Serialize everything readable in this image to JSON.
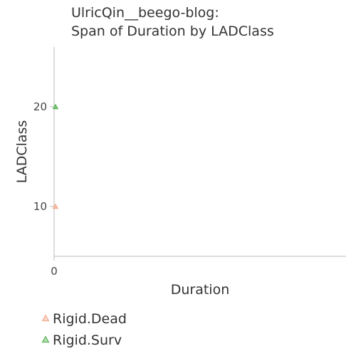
{
  "chart_data": {
    "type": "scatter",
    "title": "UlricQin__beego-blog:",
    "subtitle": "Span of Duration by LADClass",
    "xlabel": "Duration",
    "ylabel": "LADClass",
    "xlim": [
      0,
      1
    ],
    "ylim": [
      5,
      26
    ],
    "x_ticks": [
      0
    ],
    "y_ticks": [
      10,
      20
    ],
    "legend_position": "bottom-left",
    "grid": false,
    "series": [
      {
        "name": "Rigid.Dead",
        "color": "#f4a582",
        "marker": "triangle",
        "points": [
          {
            "x": 0,
            "y": 10
          }
        ]
      },
      {
        "name": "Rigid.Surv",
        "color": "#4daf4a",
        "marker": "triangle",
        "points": [
          {
            "x": 0,
            "y": 20
          }
        ]
      }
    ]
  }
}
